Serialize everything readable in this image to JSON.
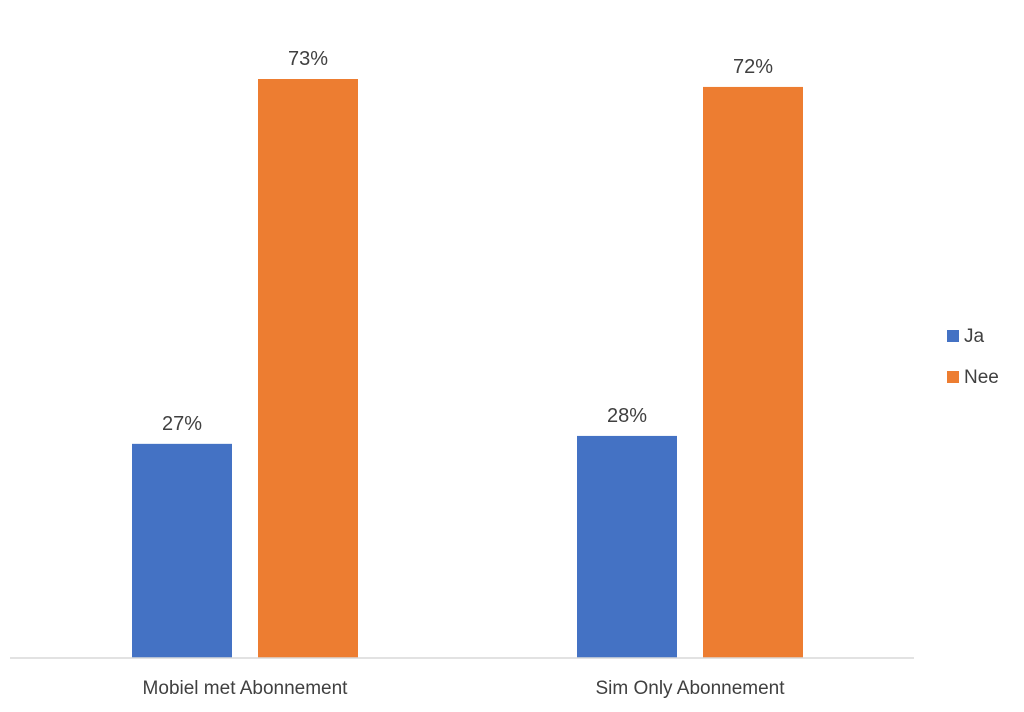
{
  "chart_data": {
    "type": "bar",
    "title": "",
    "xlabel": "",
    "ylabel": "",
    "categories": [
      "Mobiel met Abonnement",
      "Sim Only Abonnement"
    ],
    "series": [
      {
        "name": "Ja",
        "values": [
          27,
          28
        ],
        "labels": [
          "27%",
          "28%"
        ],
        "color": "#4472C4"
      },
      {
        "name": "Nee",
        "values": [
          73,
          72
        ],
        "labels": [
          "73%",
          "72%"
        ],
        "color": "#ED7D31"
      }
    ],
    "ylim": [
      0,
      73
    ],
    "grid": false,
    "legend_position": "right"
  }
}
